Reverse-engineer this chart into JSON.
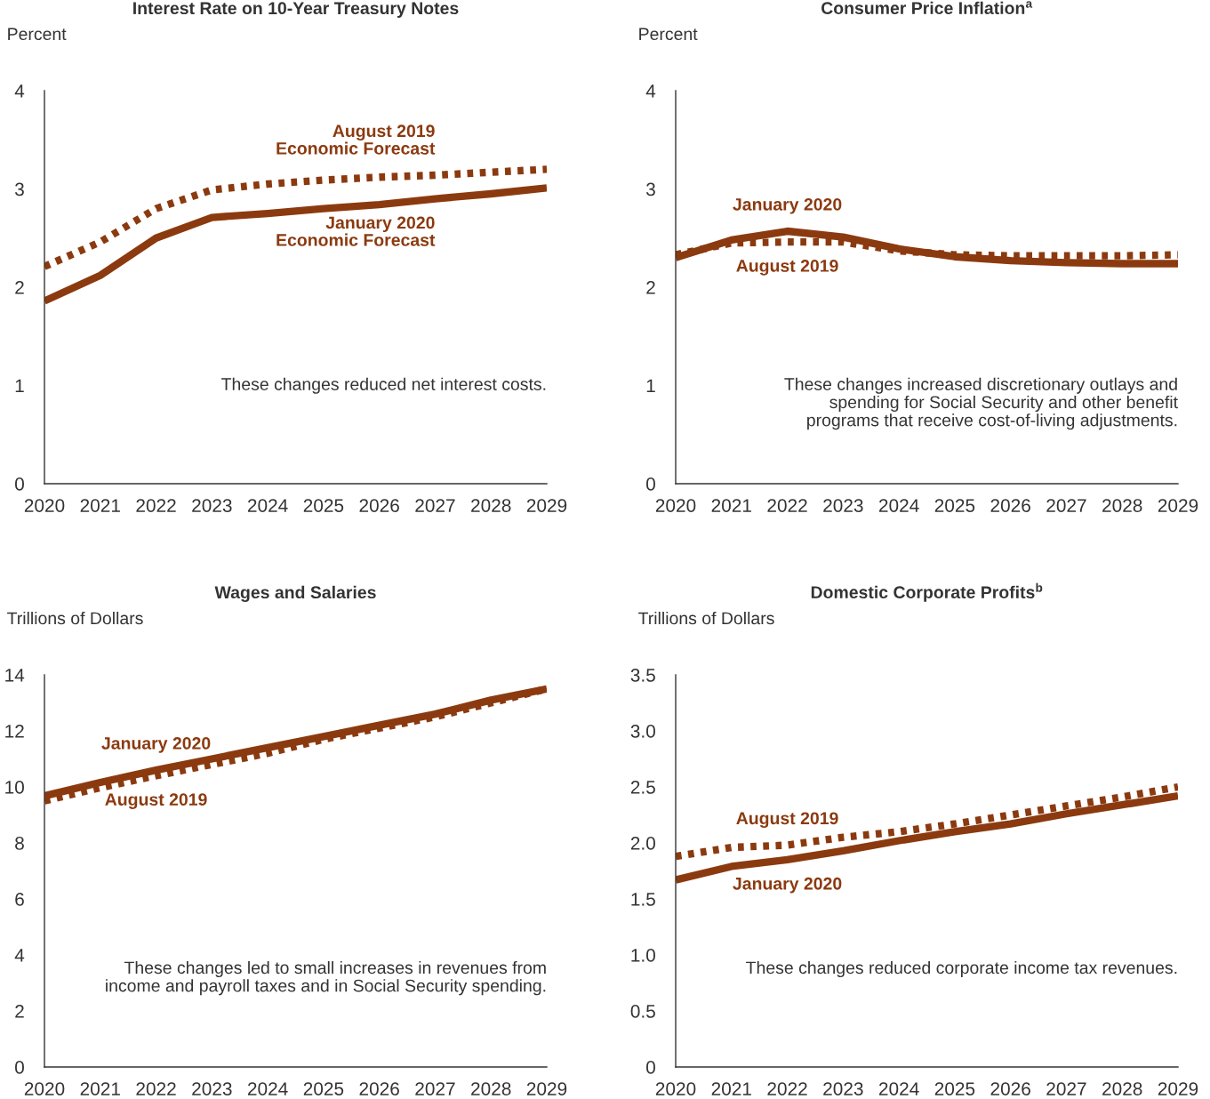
{
  "chart_data": [
    {
      "type": "line",
      "title": "Interest Rate on 10-Year Treasury Notes",
      "ylabel": "Percent",
      "x": [
        2020,
        2021,
        2022,
        2023,
        2024,
        2025,
        2026,
        2027,
        2028,
        2029
      ],
      "series": [
        {
          "name": "August 2019\nEconomic Forecast",
          "color": "#8b3a0f",
          "line_style": "dotted",
          "values": [
            2.21,
            2.46,
            2.8,
            2.99,
            3.05,
            3.09,
            3.12,
            3.14,
            3.17,
            3.2
          ]
        },
        {
          "name": "January 2020\nEconomic Forecast",
          "color": "#8b3a0f",
          "line_style": "solid",
          "values": [
            1.86,
            2.12,
            2.5,
            2.71,
            2.75,
            2.8,
            2.84,
            2.9,
            2.95,
            3.01
          ]
        }
      ],
      "xlim": [
        2020,
        2029
      ],
      "xticks": [
        2020,
        2021,
        2022,
        2023,
        2024,
        2025,
        2026,
        2027,
        2028,
        2029
      ],
      "ylim": [
        0,
        4
      ],
      "yticks": [
        0,
        1,
        2,
        3,
        4
      ],
      "grid": false,
      "legend": false,
      "annotations": [
        "These changes reduced net interest costs."
      ]
    },
    {
      "type": "line",
      "title": "Consumer Price Inflation$^{a}$",
      "ylabel": "Percent",
      "x": [
        2020,
        2021,
        2022,
        2023,
        2024,
        2025,
        2026,
        2027,
        2028,
        2029
      ],
      "series": [
        {
          "name": "August 2019",
          "color": "#8b3a0f",
          "line_style": "dotted",
          "values": [
            2.33,
            2.45,
            2.46,
            2.46,
            2.37,
            2.33,
            2.32,
            2.32,
            2.32,
            2.33
          ]
        },
        {
          "name": "January 2020",
          "color": "#8b3a0f",
          "line_style": "solid",
          "values": [
            2.3,
            2.48,
            2.57,
            2.51,
            2.39,
            2.31,
            2.27,
            2.25,
            2.24,
            2.24
          ]
        }
      ],
      "xlim": [
        2020,
        2029
      ],
      "xticks": [
        2020,
        2021,
        2022,
        2023,
        2024,
        2025,
        2026,
        2027,
        2028,
        2029
      ],
      "ylim": [
        0,
        4
      ],
      "yticks": [
        0,
        1,
        2,
        3,
        4
      ],
      "grid": false,
      "legend": false,
      "annotations": [
        "These changes increased discretionary outlays and\nspending for Social Security and other benefit\nprograms that receive cost-of-living adjustments."
      ]
    },
    {
      "type": "line",
      "title": "Wages and Salaries",
      "ylabel": "Trillions of Dollars",
      "x": [
        2020,
        2021,
        2022,
        2023,
        2024,
        2025,
        2026,
        2027,
        2028,
        2029
      ],
      "series": [
        {
          "name": "August 2019",
          "color": "#8b3a0f",
          "line_style": "dotted",
          "values": [
            9.5,
            9.97,
            10.4,
            10.8,
            11.2,
            11.7,
            12.1,
            12.5,
            13.0,
            13.5
          ]
        },
        {
          "name": "January 2020",
          "color": "#8b3a0f",
          "line_style": "solid",
          "values": [
            9.68,
            10.16,
            10.6,
            11.0,
            11.4,
            11.8,
            12.2,
            12.6,
            13.1,
            13.5
          ]
        }
      ],
      "xlim": [
        2020,
        2029
      ],
      "xticks": [
        2020,
        2021,
        2022,
        2023,
        2024,
        2025,
        2026,
        2027,
        2028,
        2029
      ],
      "ylim": [
        0,
        14
      ],
      "yticks": [
        0,
        2,
        4,
        6,
        8,
        10,
        12,
        14
      ],
      "grid": false,
      "legend": false,
      "annotations": [
        "These changes led to small increases in revenues from\nincome and payroll taxes and in Social Security spending."
      ]
    },
    {
      "type": "line",
      "title": "Domestic Corporate Profits$^{b}$",
      "ylabel": "Trillions of Dollars",
      "x": [
        2020,
        2021,
        2022,
        2023,
        2024,
        2025,
        2026,
        2027,
        2028,
        2029
      ],
      "series": [
        {
          "name": "August 2019",
          "color": "#8b3a0f",
          "line_style": "dotted",
          "values": [
            1.88,
            1.96,
            1.98,
            2.05,
            2.1,
            2.17,
            2.25,
            2.33,
            2.41,
            2.5
          ]
        },
        {
          "name": "January 2020",
          "color": "#8b3a0f",
          "line_style": "solid",
          "values": [
            1.67,
            1.79,
            1.85,
            1.93,
            2.02,
            2.1,
            2.17,
            2.26,
            2.34,
            2.42
          ]
        }
      ],
      "xlim": [
        2020,
        2029
      ],
      "xticks": [
        2020,
        2021,
        2022,
        2023,
        2024,
        2025,
        2026,
        2027,
        2028,
        2029
      ],
      "ylim": [
        0,
        3.5
      ],
      "yticks": [
        0,
        0.5,
        {
          "value": 1,
          "label": "1.0"
        },
        1.5,
        {
          "value": 2,
          "label": "2.0"
        },
        2.5,
        {
          "value": 3,
          "label": "3.0"
        },
        3.5
      ],
      "grid": false,
      "legend": false,
      "annotations": [
        "These changes reduced corporate income tax revenues."
      ]
    }
  ]
}
